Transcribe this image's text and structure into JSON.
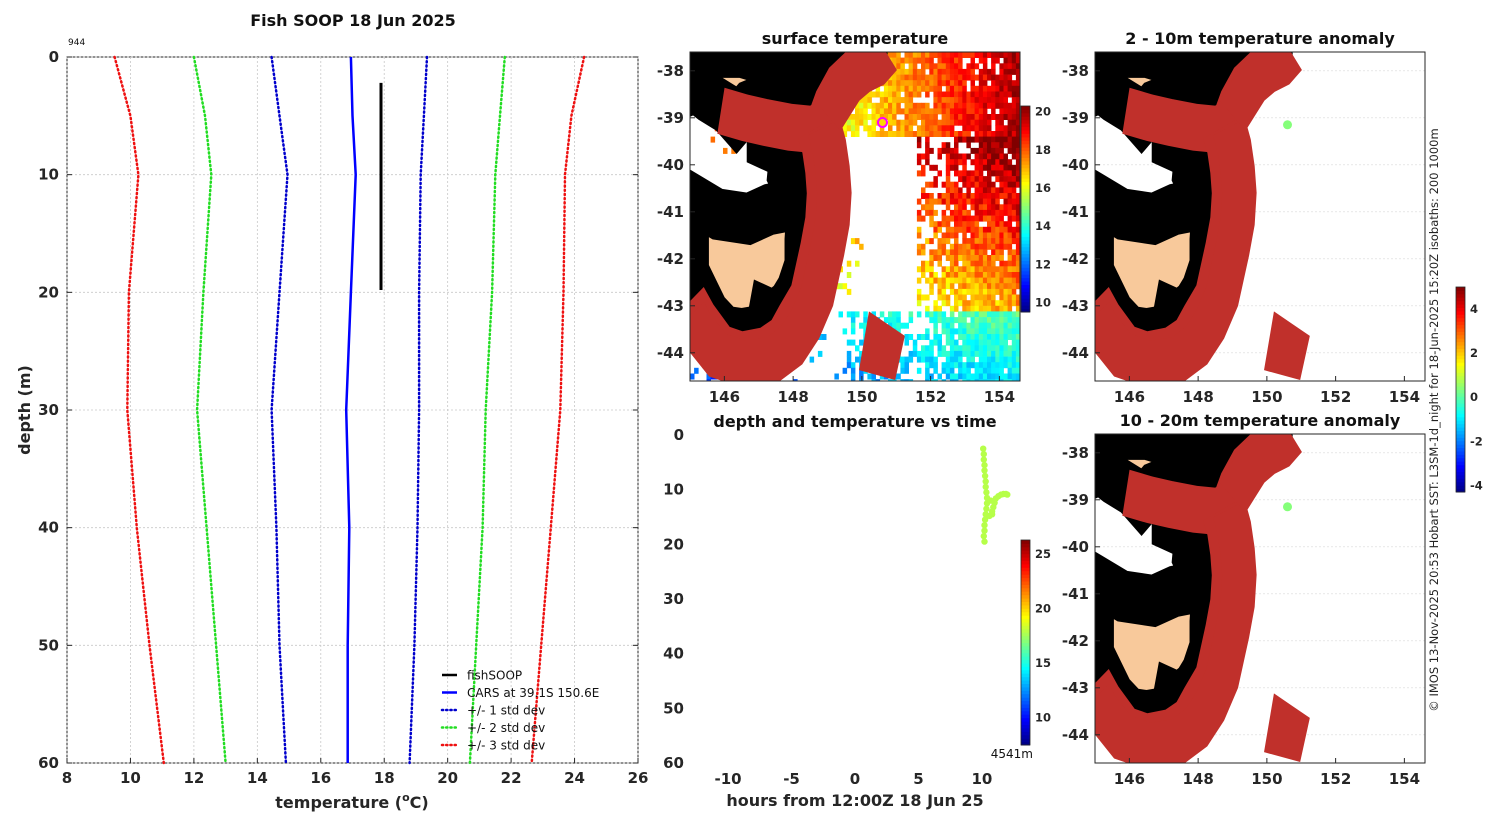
{
  "colors": {
    "fish": "#000000",
    "cars": "#0000ff",
    "sd1": "#0000cc",
    "sd2": "#22dd22",
    "sd3": "#ee1111",
    "land": "#f8c99b",
    "coast": "#000000",
    "isobath": "#c0302b",
    "grid": "#c8c8c8",
    "marker_fill": "#ffd700",
    "marker_ring": "#ff00ff"
  },
  "chart_data": [
    {
      "id": "profile",
      "type": "line",
      "title": "Fish SOOP 18 Jun 2025",
      "corner_label": "944",
      "xlabel": "temperature (",
      "xlabel_sup": "o",
      "xlabel_tail": "C)",
      "ylabel": "depth (m)",
      "xlim": [
        8,
        26
      ],
      "ylim": [
        60,
        0
      ],
      "xticks": [
        8,
        10,
        12,
        14,
        16,
        18,
        20,
        22,
        24,
        26
      ],
      "yticks": [
        0,
        10,
        20,
        30,
        40,
        50,
        60
      ],
      "grid": true,
      "legend_position": "bottom-right",
      "series": [
        {
          "name": "fishSOOP",
          "style": "solid",
          "color": "fish",
          "width": 3,
          "points": [
            [
              17.9,
              2.2
            ],
            [
              17.9,
              5
            ],
            [
              17.9,
              8
            ],
            [
              17.9,
              11
            ],
            [
              17.9,
              14
            ],
            [
              17.9,
              17
            ],
            [
              17.9,
              19.8
            ]
          ]
        },
        {
          "name": "CARS at 39.1S 150.6E",
          "style": "solid",
          "color": "cars",
          "width": 2.5,
          "points": [
            [
              16.95,
              0
            ],
            [
              17.0,
              5
            ],
            [
              17.1,
              10
            ],
            [
              16.95,
              20
            ],
            [
              16.8,
              30
            ],
            [
              16.9,
              40
            ],
            [
              16.85,
              50
            ],
            [
              16.85,
              60
            ]
          ]
        },
        {
          "name": "+/- 1 std dev",
          "style": "dotted",
          "color": "sd1",
          "width": 2.5,
          "points": [
            [
              14.45,
              0
            ],
            [
              14.7,
              5
            ],
            [
              14.95,
              10
            ],
            [
              14.7,
              20
            ],
            [
              14.45,
              30
            ],
            [
              14.6,
              40
            ],
            [
              14.7,
              50
            ],
            [
              14.9,
              60
            ]
          ]
        },
        {
          "name": "",
          "style": "dotted",
          "color": "sd1",
          "width": 2.5,
          "points": [
            [
              19.35,
              0
            ],
            [
              19.25,
              5
            ],
            [
              19.15,
              10
            ],
            [
              19.1,
              20
            ],
            [
              19.1,
              30
            ],
            [
              19.05,
              40
            ],
            [
              18.95,
              50
            ],
            [
              18.8,
              60
            ]
          ]
        },
        {
          "name": "+/- 2 std dev",
          "style": "dotted",
          "color": "sd2",
          "width": 2.5,
          "points": [
            [
              12.0,
              0
            ],
            [
              12.35,
              5
            ],
            [
              12.55,
              10
            ],
            [
              12.3,
              20
            ],
            [
              12.1,
              30
            ],
            [
              12.4,
              40
            ],
            [
              12.7,
              50
            ],
            [
              13.0,
              60
            ]
          ]
        },
        {
          "name": "",
          "style": "dotted",
          "color": "sd2",
          "width": 2.5,
          "points": [
            [
              21.8,
              0
            ],
            [
              21.65,
              5
            ],
            [
              21.5,
              10
            ],
            [
              21.4,
              20
            ],
            [
              21.2,
              30
            ],
            [
              21.1,
              40
            ],
            [
              20.9,
              50
            ],
            [
              20.7,
              60
            ]
          ]
        },
        {
          "name": "+/- 3 std dev",
          "style": "dotted",
          "color": "sd3",
          "width": 2.5,
          "points": [
            [
              9.5,
              0
            ],
            [
              10.0,
              5
            ],
            [
              10.25,
              10
            ],
            [
              9.95,
              20
            ],
            [
              9.9,
              30
            ],
            [
              10.2,
              40
            ],
            [
              10.6,
              50
            ],
            [
              11.05,
              60
            ]
          ]
        },
        {
          "name": "",
          "style": "dotted",
          "color": "sd3",
          "width": 2.5,
          "points": [
            [
              24.3,
              0
            ],
            [
              23.9,
              5
            ],
            [
              23.7,
              10
            ],
            [
              23.65,
              20
            ],
            [
              23.55,
              30
            ],
            [
              23.25,
              40
            ],
            [
              22.95,
              50
            ],
            [
              22.65,
              60
            ]
          ]
        }
      ]
    },
    {
      "id": "sst_map",
      "type": "heatmap",
      "title": "surface temperature",
      "xlim": [
        145,
        154.6
      ],
      "ylim": [
        -44.6,
        -37.6
      ],
      "xticks": [
        146,
        148,
        150,
        152,
        154
      ],
      "yticks": [
        -38,
        -39,
        -40,
        -41,
        -42,
        -43,
        -44
      ],
      "colorbar": {
        "min": 9.5,
        "max": 20.3,
        "ticks": [
          10,
          12,
          14,
          16,
          18,
          20
        ]
      },
      "marker": {
        "lon": 150.6,
        "lat": -39.1
      }
    },
    {
      "id": "depth_time",
      "type": "scatter",
      "title": "depth and temperature vs time",
      "xlabel": "hours from 12:00Z 18 Jun 25",
      "xlim": [
        -13,
        13
      ],
      "ylim": [
        60,
        0
      ],
      "xticks": [
        -10,
        -5,
        0,
        5,
        10
      ],
      "yticks": [
        0,
        10,
        20,
        30,
        40,
        50,
        60
      ],
      "colorbar": {
        "min": 7.5,
        "max": 26.3,
        "ticks": [
          10,
          15,
          20,
          25
        ]
      },
      "bottom_right_label": "4541m",
      "points": [
        [
          10.1,
          2.5,
          17.9
        ],
        [
          10.15,
          3.5,
          17.9
        ],
        [
          10.15,
          4.5,
          17.9
        ],
        [
          10.2,
          5.5,
          17.9
        ],
        [
          10.2,
          6.5,
          17.9
        ],
        [
          10.25,
          7.5,
          17.9
        ],
        [
          10.3,
          8.5,
          17.9
        ],
        [
          10.3,
          9.5,
          17.9
        ],
        [
          10.35,
          10.5,
          17.9
        ],
        [
          10.4,
          11.5,
          17.9
        ],
        [
          10.4,
          12.5,
          17.9
        ],
        [
          10.35,
          13.5,
          17.9
        ],
        [
          10.3,
          14.5,
          17.9
        ],
        [
          10.25,
          15.5,
          17.9
        ],
        [
          10.2,
          16.5,
          17.9
        ],
        [
          10.2,
          17.5,
          17.9
        ],
        [
          10.15,
          18.5,
          17.9
        ],
        [
          10.2,
          19.5,
          17.9
        ],
        [
          10.6,
          14.8,
          17.9
        ],
        [
          10.8,
          14.0,
          17.9
        ],
        [
          10.9,
          13.2,
          17.9
        ],
        [
          11.0,
          12.4,
          17.9
        ],
        [
          11.1,
          11.6,
          17.9
        ],
        [
          11.3,
          11.2,
          17.9
        ],
        [
          11.5,
          10.9,
          17.9
        ],
        [
          11.7,
          10.8,
          17.9
        ],
        [
          11.9,
          10.8,
          17.9
        ],
        [
          12.0,
          10.9,
          17.9
        ],
        [
          10.8,
          14.5,
          17.9
        ],
        [
          10.7,
          12.0,
          17.9
        ]
      ]
    },
    {
      "id": "anom_2_10",
      "type": "scatter",
      "title": "2 - 10m temperature anomaly",
      "xlim": [
        145,
        154.6
      ],
      "ylim": [
        -44.6,
        -37.6
      ],
      "xticks": [
        146,
        148,
        150,
        152,
        154
      ],
      "yticks": [
        -38,
        -39,
        -40,
        -41,
        -42,
        -43,
        -44
      ],
      "points": [
        [
          150.6,
          -39.15,
          0.4
        ]
      ]
    },
    {
      "id": "anom_10_20",
      "type": "scatter",
      "title": "10 - 20m temperature anomaly",
      "xlim": [
        145,
        154.6
      ],
      "ylim": [
        -44.6,
        -37.6
      ],
      "xticks": [
        146,
        148,
        150,
        152,
        154
      ],
      "yticks": [
        -38,
        -39,
        -40,
        -41,
        -42,
        -43,
        -44
      ],
      "points": [
        [
          150.6,
          -39.15,
          0.4
        ]
      ]
    },
    {
      "id": "anom_colorbar",
      "type": "colorbar",
      "min": -4.3,
      "max": 5.0,
      "ticks": [
        -4,
        -2,
        0,
        2,
        4
      ]
    }
  ],
  "side_label": "© IMOS 13-Nov-2025 20:53 Hobart SST: L3SM-1d_night for 18-Jun-2025 15:20Z isobaths: 200  1000m"
}
